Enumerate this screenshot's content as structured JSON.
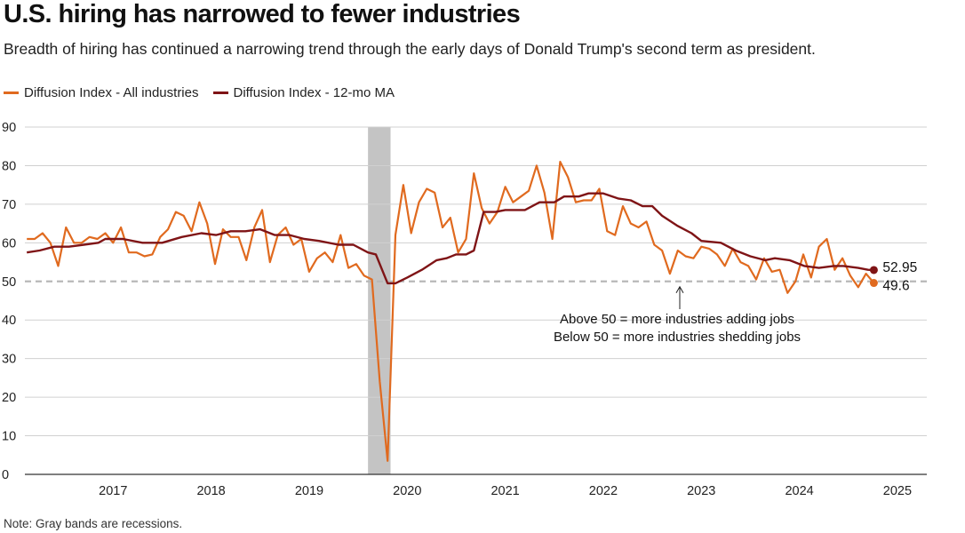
{
  "title": "U.S. hiring has narrowed to fewer industries",
  "subtitle": "Breadth of hiring has continued a narrowing trend through the early days of Donald Trump's second term as president.",
  "note": "Note: Gray bands are recessions.",
  "chart_data": {
    "type": "line",
    "ylim": [
      0,
      90
    ],
    "yticks": [
      0,
      10,
      20,
      30,
      40,
      50,
      60,
      70,
      80,
      90
    ],
    "xlim": [
      2016.6,
      2025.8
    ],
    "xticks": [
      {
        "label": "2017",
        "value": 2017.5
      },
      {
        "label": "2018",
        "value": 2018.5
      },
      {
        "label": "2019",
        "value": 2019.5
      },
      {
        "label": "2020",
        "value": 2020.5
      },
      {
        "label": "2021",
        "value": 2021.5
      },
      {
        "label": "2022",
        "value": 2022.5
      },
      {
        "label": "2023",
        "value": 2023.5
      },
      {
        "label": "2024",
        "value": 2024.5
      },
      {
        "label": "2025",
        "value": 2025.5
      }
    ],
    "reference_line": 50,
    "recession": {
      "start": 2020.1,
      "end": 2020.33
    },
    "annotation": [
      "Above 50 = more industries adding jobs",
      "Below 50 = more industries shedding jobs"
    ],
    "series": [
      {
        "name": "Diffusion Index - All industries",
        "color": "#e06a1f",
        "end_label": "49.6",
        "points": [
          [
            2016.62,
            61
          ],
          [
            2016.7,
            61
          ],
          [
            2016.78,
            62.5
          ],
          [
            2016.86,
            60
          ],
          [
            2016.94,
            54
          ],
          [
            2017.02,
            64
          ],
          [
            2017.1,
            60
          ],
          [
            2017.18,
            60
          ],
          [
            2017.26,
            61.5
          ],
          [
            2017.34,
            61
          ],
          [
            2017.42,
            62.5
          ],
          [
            2017.5,
            60
          ],
          [
            2017.58,
            64
          ],
          [
            2017.66,
            57.5
          ],
          [
            2017.74,
            57.5
          ],
          [
            2017.82,
            56.5
          ],
          [
            2017.9,
            57
          ],
          [
            2017.98,
            61.5
          ],
          [
            2018.06,
            63.5
          ],
          [
            2018.14,
            68
          ],
          [
            2018.22,
            67
          ],
          [
            2018.3,
            63
          ],
          [
            2018.38,
            70.5
          ],
          [
            2018.46,
            65
          ],
          [
            2018.54,
            54.5
          ],
          [
            2018.62,
            63.5
          ],
          [
            2018.7,
            61.5
          ],
          [
            2018.78,
            61.5
          ],
          [
            2018.86,
            55.5
          ],
          [
            2018.94,
            64
          ],
          [
            2019.02,
            68.5
          ],
          [
            2019.1,
            55
          ],
          [
            2019.18,
            62
          ],
          [
            2019.26,
            64
          ],
          [
            2019.34,
            59.5
          ],
          [
            2019.42,
            61
          ],
          [
            2019.5,
            52.5
          ],
          [
            2019.58,
            56
          ],
          [
            2019.66,
            57.5
          ],
          [
            2019.74,
            55
          ],
          [
            2019.82,
            62
          ],
          [
            2019.9,
            53.5
          ],
          [
            2019.98,
            54.5
          ],
          [
            2020.06,
            51.5
          ],
          [
            2020.14,
            50.5
          ],
          [
            2020.22,
            24
          ],
          [
            2020.3,
            3.5
          ],
          [
            2020.38,
            62
          ],
          [
            2020.46,
            75
          ],
          [
            2020.54,
            62.5
          ],
          [
            2020.62,
            70.5
          ],
          [
            2020.7,
            74
          ],
          [
            2020.78,
            73
          ],
          [
            2020.86,
            64
          ],
          [
            2020.94,
            66.5
          ],
          [
            2021.02,
            57.5
          ],
          [
            2021.1,
            61
          ],
          [
            2021.18,
            78
          ],
          [
            2021.26,
            69
          ],
          [
            2021.34,
            65
          ],
          [
            2021.42,
            68
          ],
          [
            2021.5,
            74.5
          ],
          [
            2021.58,
            70.5
          ],
          [
            2021.66,
            72
          ],
          [
            2021.74,
            73.5
          ],
          [
            2021.82,
            80
          ],
          [
            2021.9,
            73
          ],
          [
            2021.98,
            61
          ],
          [
            2022.06,
            81
          ],
          [
            2022.14,
            77
          ],
          [
            2022.22,
            70.5
          ],
          [
            2022.3,
            71
          ],
          [
            2022.38,
            71
          ],
          [
            2022.46,
            74
          ],
          [
            2022.54,
            63
          ],
          [
            2022.62,
            62
          ],
          [
            2022.7,
            69.5
          ],
          [
            2022.78,
            65
          ],
          [
            2022.86,
            64
          ],
          [
            2022.94,
            65.5
          ],
          [
            2023.02,
            59.5
          ],
          [
            2023.1,
            58
          ],
          [
            2023.18,
            52
          ],
          [
            2023.26,
            58
          ],
          [
            2023.34,
            56.5
          ],
          [
            2023.42,
            56
          ],
          [
            2023.5,
            59
          ],
          [
            2023.58,
            58.5
          ],
          [
            2023.66,
            57
          ],
          [
            2023.74,
            54
          ],
          [
            2023.82,
            58.5
          ],
          [
            2023.9,
            55
          ],
          [
            2023.98,
            54
          ],
          [
            2024.06,
            50.5
          ],
          [
            2024.14,
            56
          ],
          [
            2024.22,
            52.5
          ],
          [
            2024.3,
            53
          ],
          [
            2024.38,
            47
          ],
          [
            2024.46,
            50
          ],
          [
            2024.54,
            57
          ],
          [
            2024.62,
            51
          ],
          [
            2024.7,
            59
          ],
          [
            2024.78,
            61
          ],
          [
            2024.86,
            53
          ],
          [
            2024.94,
            56
          ],
          [
            2025.02,
            51.5
          ],
          [
            2025.1,
            48.5
          ],
          [
            2025.18,
            52
          ],
          [
            2025.26,
            49.6
          ]
        ]
      },
      {
        "name": "Diffusion Index - 12-mo MA",
        "color": "#7f1416",
        "end_label": "52.95",
        "points": [
          [
            2016.62,
            57.5
          ],
          [
            2016.75,
            58
          ],
          [
            2016.9,
            59
          ],
          [
            2017.05,
            59
          ],
          [
            2017.2,
            59.5
          ],
          [
            2017.35,
            60
          ],
          [
            2017.42,
            61
          ],
          [
            2017.6,
            61
          ],
          [
            2017.8,
            60
          ],
          [
            2018.0,
            60
          ],
          [
            2018.2,
            61.5
          ],
          [
            2018.4,
            62.5
          ],
          [
            2018.55,
            62
          ],
          [
            2018.7,
            63
          ],
          [
            2018.85,
            63
          ],
          [
            2019.0,
            63.5
          ],
          [
            2019.15,
            62
          ],
          [
            2019.3,
            62
          ],
          [
            2019.45,
            61
          ],
          [
            2019.6,
            60.5
          ],
          [
            2019.8,
            59.5
          ],
          [
            2019.95,
            59.5
          ],
          [
            2020.1,
            57.5
          ],
          [
            2020.18,
            57
          ],
          [
            2020.3,
            49.5
          ],
          [
            2020.38,
            49.5
          ],
          [
            2020.5,
            51
          ],
          [
            2020.65,
            53
          ],
          [
            2020.8,
            55.5
          ],
          [
            2020.9,
            56
          ],
          [
            2021.0,
            57
          ],
          [
            2021.1,
            57
          ],
          [
            2021.18,
            58
          ],
          [
            2021.28,
            68
          ],
          [
            2021.4,
            68
          ],
          [
            2021.5,
            68.5
          ],
          [
            2021.7,
            68.5
          ],
          [
            2021.85,
            70.5
          ],
          [
            2022.0,
            70.5
          ],
          [
            2022.1,
            72
          ],
          [
            2022.25,
            72
          ],
          [
            2022.35,
            72.8
          ],
          [
            2022.5,
            72.8
          ],
          [
            2022.65,
            71.5
          ],
          [
            2022.78,
            71
          ],
          [
            2022.9,
            69.5
          ],
          [
            2023.0,
            69.5
          ],
          [
            2023.1,
            67
          ],
          [
            2023.25,
            64.5
          ],
          [
            2023.4,
            62.5
          ],
          [
            2023.5,
            60.5
          ],
          [
            2023.7,
            60
          ],
          [
            2023.85,
            58
          ],
          [
            2024.0,
            56.5
          ],
          [
            2024.15,
            55.5
          ],
          [
            2024.25,
            56
          ],
          [
            2024.4,
            55.5
          ],
          [
            2024.55,
            54
          ],
          [
            2024.7,
            53.5
          ],
          [
            2024.85,
            54
          ],
          [
            2024.95,
            54
          ],
          [
            2025.1,
            53.5
          ],
          [
            2025.2,
            53
          ],
          [
            2025.26,
            52.95
          ]
        ]
      }
    ]
  }
}
